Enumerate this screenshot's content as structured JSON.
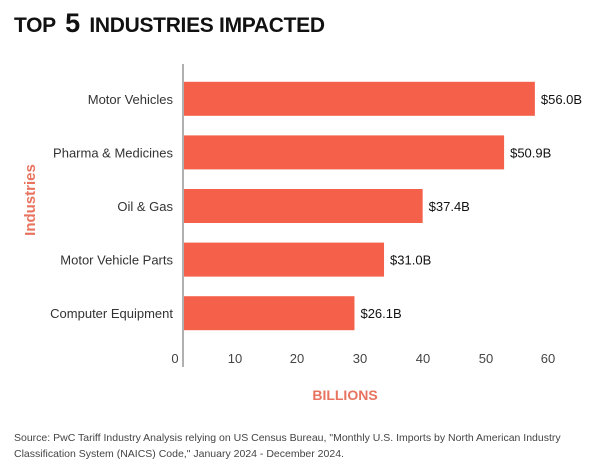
{
  "header": {
    "title_prefix": "TOP",
    "title_number": "5",
    "title_suffix": "INDUSTRIES IMPACTED"
  },
  "chart_data": {
    "type": "bar",
    "orientation": "horizontal",
    "title": "TOP 5 INDUSTRIES IMPACTED",
    "xlabel": "BILLIONS",
    "ylabel": "Industries",
    "categories": [
      "Motor Vehicles",
      "Pharma & Medicines",
      "Oil & Gas",
      "Motor Vehicle Parts",
      "Computer Equipment"
    ],
    "values": [
      56.0,
      50.9,
      37.4,
      31.0,
      26.1
    ],
    "data_labels": [
      "$56.0B",
      "$50.9B",
      "$37.4B",
      "$31.0B",
      "$26.1B"
    ],
    "xticks": [
      0,
      10,
      20,
      30,
      40,
      50,
      60
    ],
    "xlim": [
      0,
      60
    ],
    "grid": false,
    "legend": "none",
    "colors": {
      "bar": "#F4604A",
      "axis_label": "#E8735F",
      "axis_line": "#b0b0b0",
      "tick_text": "#444444",
      "category_text": "#333333",
      "value_text": "#111111"
    }
  },
  "footer": {
    "source": "Source: PwC Tariff Industry Analysis relying on US Census Bureau, \"Monthly U.S. Imports by North American Industry Classification System (NAICS) Code,\" January 2024 - December 2024."
  }
}
